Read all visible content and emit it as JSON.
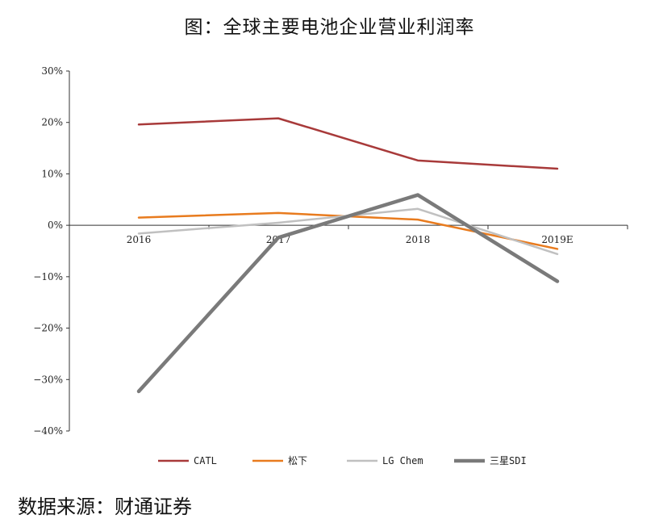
{
  "source_text": "数据来源：财通证券",
  "chart_data": {
    "type": "line",
    "title": "图：全球主要电池企业营业利润率",
    "xlabel": "",
    "ylabel": "",
    "categories": [
      "2016",
      "2017",
      "2018",
      "2019E"
    ],
    "ylim": [
      -40,
      30
    ],
    "yticks": [
      30,
      20,
      10,
      0,
      -10,
      -20,
      -30,
      -40
    ],
    "ytick_labels": [
      "30%",
      "20%",
      "10%",
      "0%",
      "−10%",
      "−20%",
      "−30%",
      "−40%"
    ],
    "legend_position": "bottom",
    "grid": false,
    "series": [
      {
        "name": "CATL",
        "color": "#a83a3a",
        "width": 2.5,
        "values": [
          19.6,
          20.8,
          12.6,
          11.0
        ]
      },
      {
        "name": "松下",
        "color": "#e87b1e",
        "width": 2.5,
        "values": [
          1.5,
          2.4,
          1.1,
          -4.6
        ]
      },
      {
        "name": "LG Chem",
        "color": "#c0c0c0",
        "width": 2.5,
        "values": [
          -1.6,
          0.5,
          3.2,
          -5.6
        ]
      },
      {
        "name": "三星SDI",
        "color": "#7a7a7a",
        "width": 4.5,
        "values": [
          -32.3,
          -2.4,
          5.9,
          -10.9
        ]
      }
    ]
  }
}
